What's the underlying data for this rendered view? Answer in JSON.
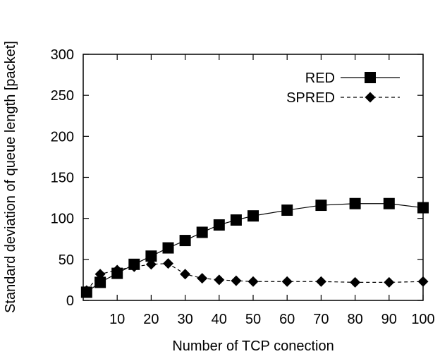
{
  "chart_data": {
    "type": "line",
    "xlabel": "Number of TCP conection",
    "ylabel": "Standard deviation of queue length [packet]",
    "xlim": [
      0,
      100
    ],
    "ylim": [
      0,
      300
    ],
    "xticks": [
      10,
      20,
      30,
      40,
      50,
      60,
      70,
      80,
      90,
      100
    ],
    "yticks": [
      0,
      50,
      100,
      150,
      200,
      250,
      300
    ],
    "grid": false,
    "legend_position": "top-right",
    "series": [
      {
        "name": "RED",
        "marker": "square",
        "line_style": "solid",
        "x": [
          1,
          5,
          10,
          15,
          20,
          25,
          30,
          35,
          40,
          45,
          50,
          60,
          70,
          80,
          90,
          100
        ],
        "y": [
          10,
          22,
          33,
          44,
          54,
          64,
          73,
          83,
          92,
          98,
          103,
          110,
          116,
          118,
          118,
          113
        ]
      },
      {
        "name": "SPRED",
        "marker": "diamond",
        "line_style": "dashed",
        "x": [
          1,
          5,
          10,
          15,
          20,
          25,
          30,
          35,
          40,
          45,
          50,
          60,
          70,
          80,
          90,
          100
        ],
        "y": [
          12,
          32,
          37,
          41,
          44,
          45,
          32,
          27,
          25,
          24,
          23,
          23,
          23,
          22,
          22,
          23
        ]
      }
    ]
  }
}
